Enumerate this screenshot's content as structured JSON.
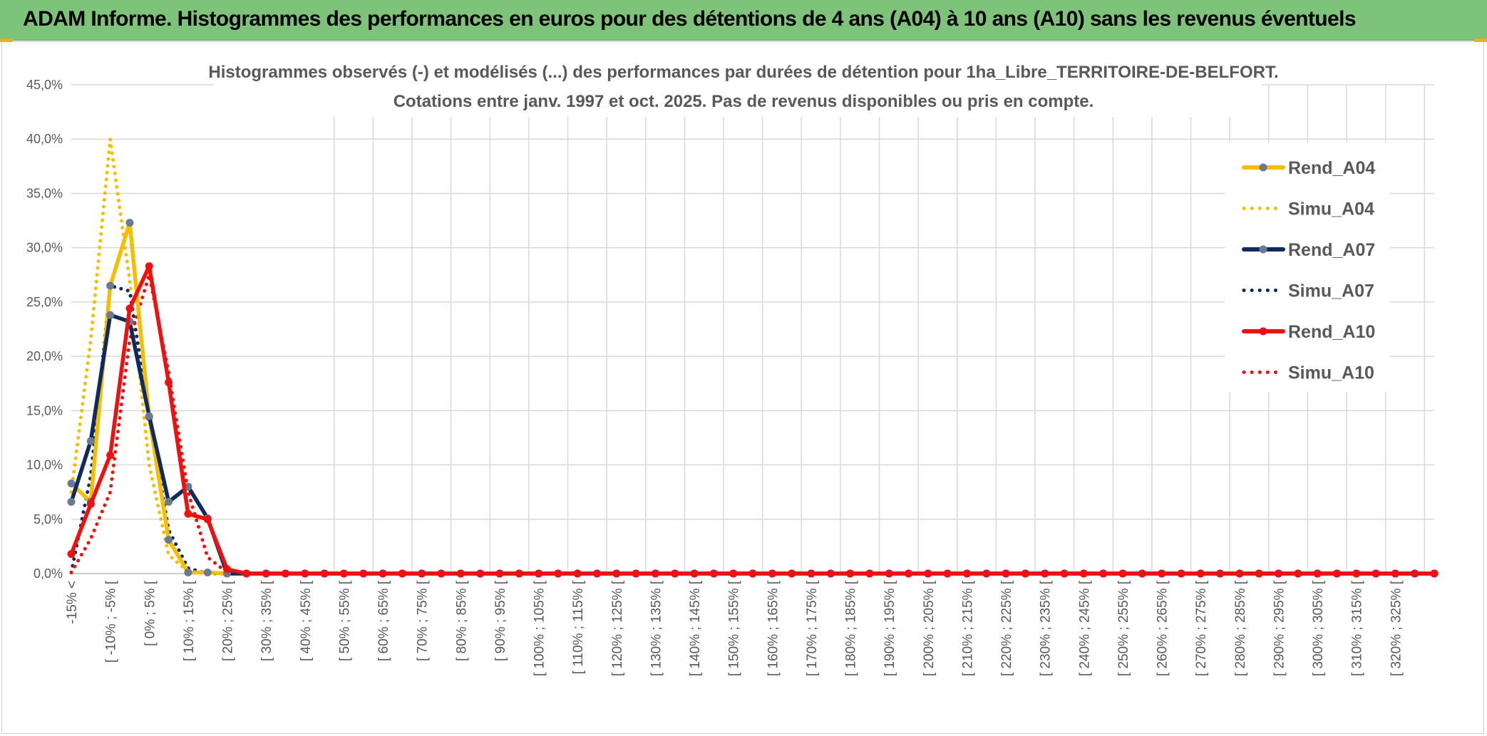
{
  "banner": {
    "title": "ADAM Informe. Histogrammes des performances en euros pour des détentions de 4 ans (A04) à 10 ans (A10) sans les revenus éventuels"
  },
  "colors": {
    "banner": "#7dc47a",
    "A04": "#f5be00",
    "A07": "#0f2a5c",
    "A10": "#ee1111",
    "grid": "#d9d9d9",
    "text": "#595959"
  },
  "chart_data": {
    "type": "line",
    "title": [
      "Histogrammes observés (-) et modélisés (...) des performances par durées de détention pour 1ha_Libre_TERRITOIRE-DE-BELFORT.",
      "Cotations entre janv. 1997 et oct. 2025. Pas de revenus disponibles ou pris en compte."
    ],
    "ylim": [
      0,
      45
    ],
    "yticks": [
      "0,0%",
      "5,0%",
      "10,0%",
      "15,0%",
      "20,0%",
      "25,0%",
      "30,0%",
      "35,0%",
      "40,0%",
      "45,0%"
    ],
    "x_label_texts": [
      "-15% <",
      "[ -10% ; -5% [",
      "[ 0% ; 5% [",
      "[ 10% ; 15% [",
      "[ 20% ; 25% [",
      "[ 30% ; 35% [",
      "[ 40% ; 45% [",
      "[ 50% ; 55% [",
      "[ 60% ; 65% [",
      "[ 70% ; 75% [",
      "[ 80% ; 85% [",
      "[ 90% ; 95% [",
      "[ 100% ; 105% [",
      "[ 110% ; 115% [",
      "[ 120% ; 125% [",
      "[ 130% ; 135% [",
      "[ 140% ; 145% [",
      "[ 150% ; 155% [",
      "[ 160% ; 165% [",
      "[ 170% ; 175% [",
      "[ 180% ; 185% [",
      "[ 190% ; 195% [",
      "[ 200% ; 205% [",
      "[ 210% ; 215% [",
      "[ 220% ; 225% [",
      "[ 230% ; 235% [",
      "[ 240% ; 245% [",
      "[ 250% ; 255% [",
      "[ 260% ; 265% [",
      "[ 270% ; 275% [",
      "[ 280% ; 285% [",
      "[ 290% ; 295% [",
      "[ 300% ; 305% [",
      "[ 310% ; 315% [",
      "[ 320% ; 325% ["
    ],
    "legend_position": "right",
    "grid": true,
    "series": [
      {
        "name": "Rend_A04",
        "style": "solid",
        "color": "#f5be00",
        "values": [
          8.3,
          6.6,
          26.5,
          32.3,
          14.4,
          3.1,
          0.1,
          0.1,
          0.0
        ]
      },
      {
        "name": "Simu_A04",
        "style": "dotted",
        "color": "#f5be00",
        "values": [
          7.5,
          21.5,
          40.0,
          27.0,
          10.0,
          1.7,
          0.2,
          0.0,
          0.0
        ]
      },
      {
        "name": "Rend_A07",
        "style": "solid",
        "color": "#0f2a5c",
        "values": [
          6.6,
          12.2,
          23.8,
          23.2,
          14.5,
          6.6,
          8.0,
          5.1,
          0.0
        ]
      },
      {
        "name": "Simu_A07",
        "style": "dotted",
        "color": "#0f2a5c",
        "values": [
          0.1,
          9.0,
          26.5,
          26.0,
          14.5,
          4.0,
          0.5,
          0.0,
          0.0
        ]
      },
      {
        "name": "Rend_A10",
        "style": "solid",
        "color": "#ee1111",
        "values": [
          1.8,
          6.4,
          10.9,
          24.4,
          28.3,
          17.6,
          5.5,
          5.0,
          0.4
        ]
      },
      {
        "name": "Simu_A10",
        "style": "dotted",
        "color": "#ee1111",
        "values": [
          0.1,
          3.2,
          7.5,
          21.5,
          27.5,
          18.5,
          7.5,
          1.5,
          0.1
        ]
      }
    ],
    "tail_value": 0.0
  }
}
